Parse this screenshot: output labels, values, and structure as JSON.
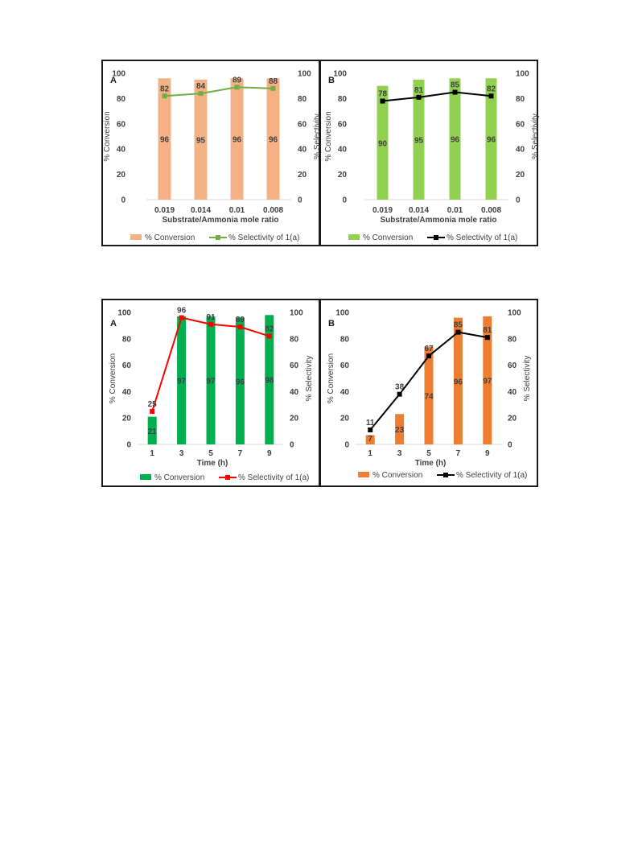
{
  "chart_data": [
    {
      "type": "bar",
      "panel_label": "A",
      "categories": [
        "0.019",
        "0.014",
        "0.01",
        "0.008"
      ],
      "xlabel": "Substrate/Ammonia mole ratio",
      "ylabel": "% Conversion",
      "y2label": "% Selectivity",
      "ylim": [
        0,
        100
      ],
      "y2lim": [
        0,
        100
      ],
      "yticks": [
        "0",
        "20",
        "40",
        "60",
        "80",
        "100"
      ],
      "legend_position": "bottom",
      "series": [
        {
          "name": "% Conversion",
          "kind": "bar",
          "color": "#f4b183",
          "values": [
            96,
            95,
            96,
            96
          ],
          "labels": [
            "96",
            "95",
            "96",
            "96"
          ]
        },
        {
          "name": "% Selectivity of 1(a)",
          "kind": "line",
          "color": "#70ad47",
          "values": [
            82,
            84,
            89,
            88
          ],
          "labels": [
            "82",
            "84",
            "89",
            "88"
          ]
        }
      ]
    },
    {
      "type": "bar",
      "panel_label": "B",
      "categories": [
        "0.019",
        "0.014",
        "0.01",
        "0.008"
      ],
      "xlabel": "Substrate/Ammonia mole ratio",
      "ylabel": "% Conversion",
      "y2label": "% Selectivity",
      "ylim": [
        0,
        100
      ],
      "y2lim": [
        0,
        100
      ],
      "yticks": [
        "0",
        "20",
        "40",
        "60",
        "80",
        "100"
      ],
      "legend_position": "bottom",
      "series": [
        {
          "name": "% Conversion",
          "kind": "bar",
          "color": "#92d050",
          "values": [
            90,
            95,
            96,
            96
          ],
          "labels": [
            "90",
            "95",
            "96",
            "96"
          ]
        },
        {
          "name": "% Selectivity of 1(a)",
          "kind": "line",
          "color": "#000000",
          "values": [
            78,
            81,
            85,
            82
          ],
          "labels": [
            "78",
            "81",
            "85",
            "82"
          ]
        }
      ]
    },
    {
      "type": "bar",
      "panel_label": "A",
      "categories": [
        "1",
        "3",
        "5",
        "7",
        "9"
      ],
      "xlabel": "Time (h)",
      "ylabel": "% Conversion",
      "y2label": "% Selectivity",
      "ylim": [
        0,
        100
      ],
      "y2lim": [
        0,
        100
      ],
      "yticks": [
        "0",
        "20",
        "40",
        "60",
        "80",
        "100"
      ],
      "legend_position": "bottom",
      "series": [
        {
          "name": "% Conversion",
          "kind": "bar",
          "color": "#00b050",
          "values": [
            21,
            97,
            97,
            96,
            98
          ],
          "labels": [
            "21",
            "97",
            "97",
            "96",
            "98"
          ]
        },
        {
          "name": "% Selectivity of 1(a)",
          "kind": "line",
          "color": "#ff0000",
          "values": [
            25,
            96,
            91,
            89,
            82
          ],
          "labels": [
            "25",
            "96",
            "91",
            "89",
            "82"
          ]
        }
      ]
    },
    {
      "type": "bar",
      "panel_label": "B",
      "categories": [
        "1",
        "3",
        "5",
        "7",
        "9"
      ],
      "xlabel": "Time (h)",
      "ylabel": "% Conversion",
      "y2label": "% Selectivity",
      "ylim": [
        0,
        100
      ],
      "y2lim": [
        0,
        100
      ],
      "yticks": [
        "0",
        "20",
        "40",
        "60",
        "80",
        "100"
      ],
      "legend_position": "bottom",
      "series": [
        {
          "name": "% Conversion",
          "kind": "bar",
          "color": "#ed7d31",
          "values": [
            7,
            23,
            74,
            96,
            97
          ],
          "labels": [
            "7",
            "23",
            "74",
            "96",
            "97"
          ]
        },
        {
          "name": "% Selectivity of 1(a)",
          "kind": "line",
          "color": "#000000",
          "values": [
            11,
            38,
            67,
            85,
            81
          ],
          "labels": [
            "11",
            "38",
            "67",
            "85",
            "81"
          ]
        }
      ]
    }
  ]
}
